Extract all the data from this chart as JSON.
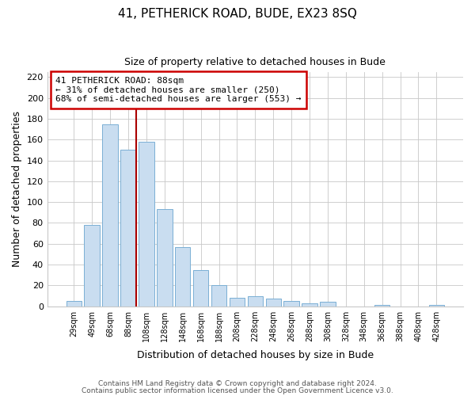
{
  "title": "41, PETHERICK ROAD, BUDE, EX23 8SQ",
  "subtitle": "Size of property relative to detached houses in Bude",
  "xlabel": "Distribution of detached houses by size in Bude",
  "ylabel": "Number of detached properties",
  "bar_color": "#c9ddf0",
  "bar_edge_color": "#7aafd4",
  "marker_line_color": "#aa0000",
  "bin_labels": [
    "29sqm",
    "49sqm",
    "68sqm",
    "88sqm",
    "108sqm",
    "128sqm",
    "148sqm",
    "168sqm",
    "188sqm",
    "208sqm",
    "228sqm",
    "248sqm",
    "268sqm",
    "288sqm",
    "308sqm",
    "328sqm",
    "348sqm",
    "368sqm",
    "388sqm",
    "408sqm",
    "428sqm"
  ],
  "bar_heights": [
    5,
    78,
    175,
    150,
    158,
    93,
    57,
    35,
    20,
    8,
    10,
    7,
    5,
    3,
    4,
    0,
    0,
    1,
    0,
    0,
    1
  ],
  "ylim": [
    0,
    225
  ],
  "yticks": [
    0,
    20,
    40,
    60,
    80,
    100,
    120,
    140,
    160,
    180,
    200,
    220
  ],
  "annotation_title": "41 PETHERICK ROAD: 88sqm",
  "annotation_line1": "← 31% of detached houses are smaller (250)",
  "annotation_line2": "68% of semi-detached houses are larger (553) →",
  "footnote1": "Contains HM Land Registry data © Crown copyright and database right 2024.",
  "footnote2": "Contains public sector information licensed under the Open Government Licence v3.0.",
  "background_color": "#ffffff",
  "grid_color": "#c8c8c8"
}
